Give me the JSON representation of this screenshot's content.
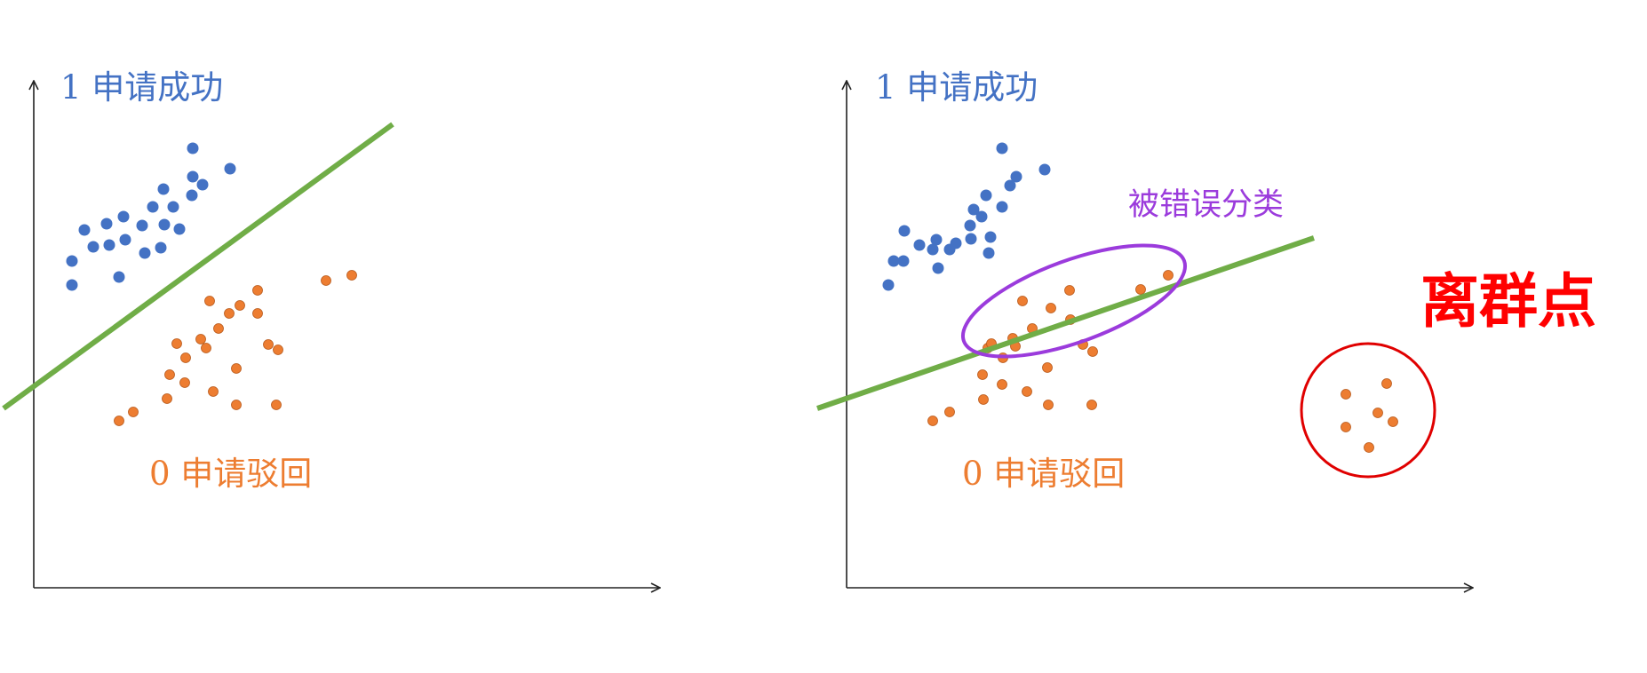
{
  "panels": [
    {
      "class1_label": "1 申请成功",
      "class0_label": "0 申请驳回",
      "blue_points": [
        [
          81,
          294
        ],
        [
          95,
          259
        ],
        [
          81,
          321
        ],
        [
          105,
          278
        ],
        [
          120,
          252
        ],
        [
          123,
          276
        ],
        [
          139,
          244
        ],
        [
          141,
          270
        ],
        [
          134,
          312
        ],
        [
          160,
          254
        ],
        [
          163,
          285
        ],
        [
          172,
          233
        ],
        [
          184,
          213
        ],
        [
          185,
          253
        ],
        [
          181,
          279
        ],
        [
          195,
          233
        ],
        [
          202,
          258
        ],
        [
          217,
          199
        ],
        [
          216,
          220
        ],
        [
          228,
          208
        ],
        [
          217,
          167
        ],
        [
          259,
          190
        ]
      ],
      "orange_points": [
        [
          367,
          316
        ],
        [
          396,
          310
        ],
        [
          290,
          327
        ],
        [
          236,
          339
        ],
        [
          258,
          353
        ],
        [
          270,
          344
        ],
        [
          290,
          353
        ],
        [
          199,
          387
        ],
        [
          226,
          382
        ],
        [
          232,
          392
        ],
        [
          246,
          370
        ],
        [
          302,
          388
        ],
        [
          313,
          394
        ],
        [
          266,
          415
        ],
        [
          191,
          422
        ],
        [
          209,
          403
        ],
        [
          208,
          431
        ],
        [
          240,
          441
        ],
        [
          188,
          449
        ],
        [
          266,
          456
        ],
        [
          311,
          456
        ],
        [
          150,
          464
        ],
        [
          134,
          474
        ]
      ],
      "fit_line": {
        "from": [
          4,
          460
        ],
        "to": [
          442,
          140
        ]
      }
    },
    {
      "class1_label": "1 申请成功",
      "class0_label": "0 申请驳回",
      "misclassified_label": "被错误分类",
      "outlier_label": "离群点",
      "blue_points": [
        [
          1128,
          167
        ],
        [
          1176,
          191
        ],
        [
          1144,
          199
        ],
        [
          1137,
          209
        ],
        [
          1110,
          220
        ],
        [
          1128,
          233
        ],
        [
          1096,
          236
        ],
        [
          1092,
          254
        ],
        [
          1105,
          244
        ],
        [
          1115,
          267
        ],
        [
          1093,
          269
        ],
        [
          1113,
          285
        ],
        [
          1076,
          274
        ],
        [
          1054,
          270
        ],
        [
          1069,
          281
        ],
        [
          1056,
          302
        ],
        [
          1017,
          294
        ],
        [
          1018,
          260
        ],
        [
          1035,
          276
        ],
        [
          1050,
          281
        ],
        [
          1006,
          294
        ],
        [
          1000,
          321
        ]
      ],
      "orange_points": [
        [
          1284,
          326
        ],
        [
          1315,
          310
        ],
        [
          1204,
          327
        ],
        [
          1151,
          339
        ],
        [
          1183,
          347
        ],
        [
          1205,
          360
        ],
        [
          1162,
          370
        ],
        [
          1112,
          392
        ],
        [
          1140,
          381
        ],
        [
          1143,
          390
        ],
        [
          1116,
          387
        ],
        [
          1219,
          388
        ],
        [
          1230,
          396
        ],
        [
          1179,
          414
        ],
        [
          1106,
          422
        ],
        [
          1129,
          403
        ],
        [
          1128,
          433
        ],
        [
          1156,
          441
        ],
        [
          1107,
          450
        ],
        [
          1180,
          456
        ],
        [
          1229,
          456
        ],
        [
          1069,
          464
        ],
        [
          1050,
          474
        ]
      ],
      "outlier_points": [
        [
          1515,
          444
        ],
        [
          1561,
          432
        ],
        [
          1568,
          475
        ],
        [
          1515,
          481
        ],
        [
          1541,
          504
        ],
        [
          1551,
          465
        ]
      ],
      "fit_line": {
        "from": [
          920,
          460
        ],
        "to": [
          1479,
          268
        ]
      }
    }
  ],
  "colors": {
    "class1": "#4472c4",
    "class0": "#ed7d31",
    "fit_line": "#70ad47",
    "misclassified": "#9b3bdc",
    "outlier": "#ff0000"
  }
}
